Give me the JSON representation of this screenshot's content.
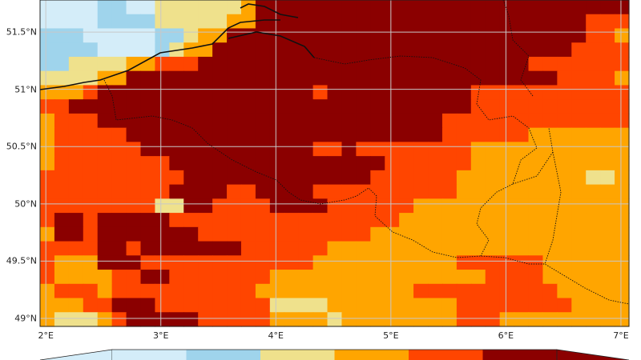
{
  "map": {
    "lat_labels": [
      "51.5°N",
      "51°N",
      "50.5°N",
      "50°N",
      "49.5°N",
      "49°N"
    ],
    "lat_values": [
      51.5,
      51,
      50.5,
      50,
      49.5,
      49
    ],
    "lon_labels": [
      "2°E",
      "3°E",
      "4°E",
      "5°E",
      "6°E",
      "7°E"
    ],
    "lon_values": [
      2,
      3,
      4,
      5,
      6,
      7
    ],
    "lon_range": [
      1.95,
      7.07
    ],
    "lat_range": [
      48.93,
      51.78
    ],
    "gridlines": true,
    "category_colors": [
      "#d4edf9",
      "#9fd4ec",
      "#efe18c",
      "#ffa500",
      "#ff4500",
      "#8b0000"
    ],
    "grid_codes": [
      "00001100222222355555555555555555555555555",
      "00001111222223355555555555555555555555444",
      "11100000112335555555555555555555555555443",
      "11110000123355555555555555555555555554444",
      "11222233444555555555555555555555554444444",
      "22223355555555555555555555555555555544443",
      "33345555555555555554555555555544444444444",
      "44555555555555555555555555555544444444444",
      "34445555555555555555555555554444444444444",
      "34444455555555555555555555554444443333333",
      "34444445555555555554454444444433333333333",
      "34444444455555555555555544444433333333333",
      "44444444445555555555555444444333333333223",
      "44444444455554455554444444444333333333333",
      "44444444225544445555444444333333333333333",
      "45545555544444444444444443333333333333333",
      "35545555555444444444444333333333333333333",
      "44445545555555444444333333333333333333333",
      "43335554444444444443333333333444444333333",
      "43333445544444443333333333333334444333333",
      "34443444444444433333333333444444444433333",
      "33344555444444442222333333333444444443333",
      "32223455555444443333233333333444333333333"
    ],
    "colorbar_colors": [
      "#d4edf9",
      "#9fd4ec",
      "#efe18c",
      "#ffa500",
      "#ff4500",
      "#8b0000"
    ],
    "extend": "both"
  }
}
